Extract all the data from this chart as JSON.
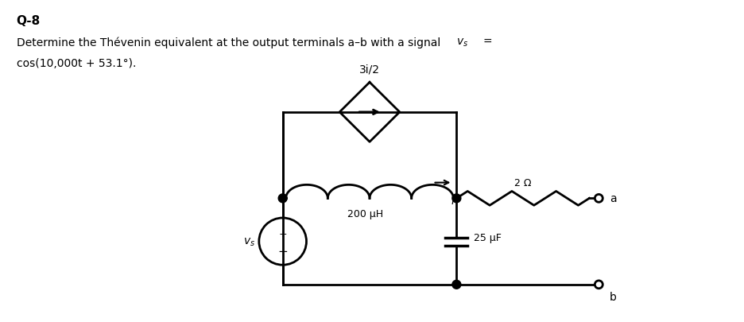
{
  "title": "Q-8",
  "bg_color": "#ffffff",
  "text_color": "#000000",
  "circuit_color": "#000000",
  "lw": 2.0,
  "diamond_label": "3i/2",
  "inductor_label": "200 μH",
  "resistor_label": "2 Ω",
  "capacitor_label": "25 μF",
  "source_label": "v_s",
  "current_label": "i",
  "terminal_a": "a",
  "terminal_b": "b"
}
